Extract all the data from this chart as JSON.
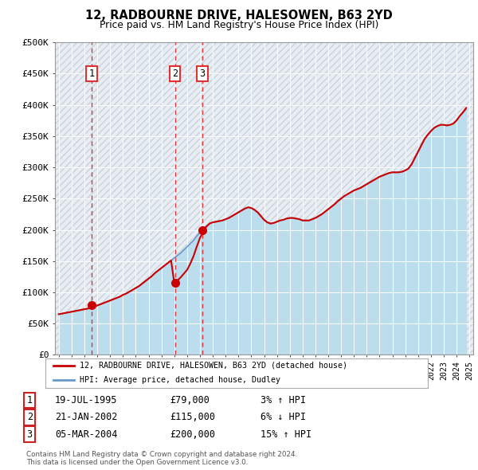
{
  "title": "12, RADBOURNE DRIVE, HALESOWEN, B63 2YD",
  "subtitle": "Price paid vs. HM Land Registry's House Price Index (HPI)",
  "ylabel_ticks": [
    "£0",
    "£50K",
    "£100K",
    "£150K",
    "£200K",
    "£250K",
    "£300K",
    "£350K",
    "£400K",
    "£450K",
    "£500K"
  ],
  "ytick_values": [
    0,
    50000,
    100000,
    150000,
    200000,
    250000,
    300000,
    350000,
    400000,
    450000,
    500000
  ],
  "ylim": [
    0,
    500000
  ],
  "xlim_start": 1992.7,
  "xlim_end": 2025.3,
  "transactions": [
    {
      "date_num": 1995.55,
      "price": 79000,
      "label": "1"
    },
    {
      "date_num": 2002.05,
      "price": 115000,
      "label": "2"
    },
    {
      "date_num": 2004.17,
      "price": 200000,
      "label": "3"
    }
  ],
  "transaction_vline_color": "#dd3333",
  "transaction_dot_color": "#cc0000",
  "property_line_color": "#cc0000",
  "hpi_line_color": "#6699cc",
  "hpi_fill_color": "#bbddee",
  "legend1_label": "12, RADBOURNE DRIVE, HALESOWEN, B63 2YD (detached house)",
  "legend2_label": "HPI: Average price, detached house, Dudley",
  "table_rows": [
    {
      "num": "1",
      "date": "19-JUL-1995",
      "price": "£79,000",
      "hpi": "3% ↑ HPI"
    },
    {
      "num": "2",
      "date": "21-JAN-2002",
      "price": "£115,000",
      "hpi": "6% ↓ HPI"
    },
    {
      "num": "3",
      "date": "05-MAR-2004",
      "price": "£200,000",
      "hpi": "15% ↑ HPI"
    }
  ],
  "footer": "Contains HM Land Registry data © Crown copyright and database right 2024.\nThis data is licensed under the Open Government Licence v3.0.",
  "plot_bg_color": "#e8eef4",
  "hatch_color": "#c8d4dd",
  "hpi_data": {
    "years": [
      1993,
      1993.25,
      1993.5,
      1993.75,
      1994,
      1994.25,
      1994.5,
      1994.75,
      1995,
      1995.25,
      1995.5,
      1995.75,
      1996,
      1996.25,
      1996.5,
      1996.75,
      1997,
      1997.25,
      1997.5,
      1997.75,
      1998,
      1998.25,
      1998.5,
      1998.75,
      1999,
      1999.25,
      1999.5,
      1999.75,
      2000,
      2000.25,
      2000.5,
      2000.75,
      2001,
      2001.25,
      2001.5,
      2001.75,
      2002,
      2002.25,
      2002.5,
      2002.75,
      2003,
      2003.25,
      2003.5,
      2003.75,
      2004,
      2004.25,
      2004.5,
      2004.75,
      2005,
      2005.25,
      2005.5,
      2005.75,
      2006,
      2006.25,
      2006.5,
      2006.75,
      2007,
      2007.25,
      2007.5,
      2007.75,
      2008,
      2008.25,
      2008.5,
      2008.75,
      2009,
      2009.25,
      2009.5,
      2009.75,
      2010,
      2010.25,
      2010.5,
      2010.75,
      2011,
      2011.25,
      2011.5,
      2011.75,
      2012,
      2012.25,
      2012.5,
      2012.75,
      2013,
      2013.25,
      2013.5,
      2013.75,
      2014,
      2014.25,
      2014.5,
      2014.75,
      2015,
      2015.25,
      2015.5,
      2015.75,
      2016,
      2016.25,
      2016.5,
      2016.75,
      2017,
      2017.25,
      2017.5,
      2017.75,
      2018,
      2018.25,
      2018.5,
      2018.75,
      2019,
      2019.25,
      2019.5,
      2019.75,
      2020,
      2020.25,
      2020.5,
      2020.75,
      2021,
      2021.25,
      2021.5,
      2021.75,
      2022,
      2022.25,
      2022.5,
      2022.75,
      2023,
      2023.25,
      2023.5,
      2023.75,
      2024,
      2024.25,
      2024.5,
      2024.75
    ],
    "hpi": [
      65000,
      66000,
      67000,
      68000,
      69000,
      70000,
      71000,
      72000,
      73000,
      74000,
      75500,
      77000,
      79000,
      81000,
      83000,
      85000,
      87000,
      89000,
      91000,
      93000,
      96000,
      98000,
      101000,
      104000,
      107000,
      110000,
      114000,
      118000,
      122000,
      126000,
      131000,
      135000,
      139000,
      143000,
      147000,
      151000,
      155000,
      159000,
      163000,
      168000,
      173000,
      178000,
      183000,
      190000,
      196000,
      201000,
      206000,
      210000,
      212000,
      213000,
      214000,
      215000,
      217000,
      219000,
      222000,
      225000,
      228000,
      231000,
      234000,
      236000,
      235000,
      232000,
      228000,
      222000,
      216000,
      212000,
      210000,
      211000,
      213000,
      215000,
      216000,
      218000,
      219000,
      219000,
      218000,
      217000,
      215000,
      215000,
      215000,
      217000,
      219000,
      222000,
      225000,
      229000,
      233000,
      237000,
      241000,
      246000,
      250000,
      254000,
      257000,
      260000,
      263000,
      265000,
      267000,
      270000,
      273000,
      276000,
      279000,
      282000,
      285000,
      287000,
      289000,
      291000,
      292000,
      292000,
      292000,
      293000,
      295000,
      298000,
      305000,
      315000,
      325000,
      335000,
      345000,
      352000,
      358000,
      363000,
      366000,
      368000,
      368000,
      367000,
      368000,
      370000,
      375000,
      382000,
      388000,
      393000
    ],
    "prop": [
      65000,
      66000,
      67000,
      68000,
      69000,
      70000,
      71000,
      72000,
      73000,
      74000,
      75500,
      77000,
      79000,
      81000,
      83000,
      85000,
      87000,
      89000,
      91000,
      93000,
      96000,
      98000,
      101000,
      104000,
      107000,
      110000,
      114000,
      118000,
      122000,
      126000,
      131000,
      135000,
      139000,
      143000,
      147000,
      151000,
      115000,
      119000,
      124000,
      130000,
      136000,
      146000,
      158000,
      173000,
      187000,
      197000,
      205000,
      210000,
      212000,
      213000,
      214000,
      215000,
      217000,
      219000,
      222000,
      225000,
      228000,
      231000,
      234000,
      236000,
      235000,
      232000,
      228000,
      222000,
      216000,
      212000,
      210000,
      211000,
      213000,
      215000,
      216000,
      218000,
      219000,
      219000,
      218000,
      217000,
      215000,
      215000,
      215000,
      217000,
      219000,
      222000,
      225000,
      229000,
      233000,
      237000,
      241000,
      246000,
      250000,
      254000,
      257000,
      260000,
      263000,
      265000,
      267000,
      270000,
      273000,
      276000,
      279000,
      282000,
      285000,
      287000,
      289000,
      291000,
      292000,
      292000,
      292000,
      293000,
      295000,
      298000,
      305000,
      315000,
      325000,
      335000,
      345000,
      352000,
      358000,
      363000,
      366000,
      368000,
      368000,
      367000,
      368000,
      370000,
      375000,
      382000,
      388000,
      395000
    ]
  }
}
